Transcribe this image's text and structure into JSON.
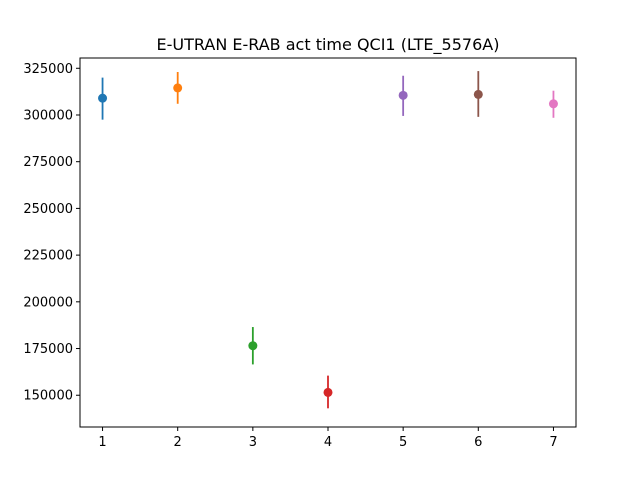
{
  "chart_data": {
    "type": "scatter",
    "title": "E-UTRAN E-RAB act time QCI1 (LTE_5576A)",
    "xlabel": "",
    "ylabel": "",
    "xlim": [
      0.7,
      7.3
    ],
    "ylim": [
      133000,
      330500
    ],
    "grid": false,
    "x_ticks": [
      1,
      2,
      3,
      4,
      5,
      6,
      7
    ],
    "y_ticks": [
      150000,
      175000,
      200000,
      225000,
      250000,
      275000,
      300000,
      325000
    ],
    "points": [
      {
        "x": 1,
        "y": 309000,
        "err_low": 297500,
        "err_high": 320000,
        "color": "#1f77b4"
      },
      {
        "x": 2,
        "y": 314500,
        "err_low": 306000,
        "err_high": 323000,
        "color": "#ff7f0e"
      },
      {
        "x": 3,
        "y": 176500,
        "err_low": 166500,
        "err_high": 186500,
        "color": "#2ca02c"
      },
      {
        "x": 4,
        "y": 151500,
        "err_low": 143000,
        "err_high": 160500,
        "color": "#d62728"
      },
      {
        "x": 5,
        "y": 310500,
        "err_low": 299500,
        "err_high": 321000,
        "color": "#9467bd"
      },
      {
        "x": 6,
        "y": 311000,
        "err_low": 299000,
        "err_high": 323500,
        "color": "#8c564b"
      },
      {
        "x": 7,
        "y": 306000,
        "err_low": 298500,
        "err_high": 313000,
        "color": "#e377c2"
      }
    ]
  }
}
